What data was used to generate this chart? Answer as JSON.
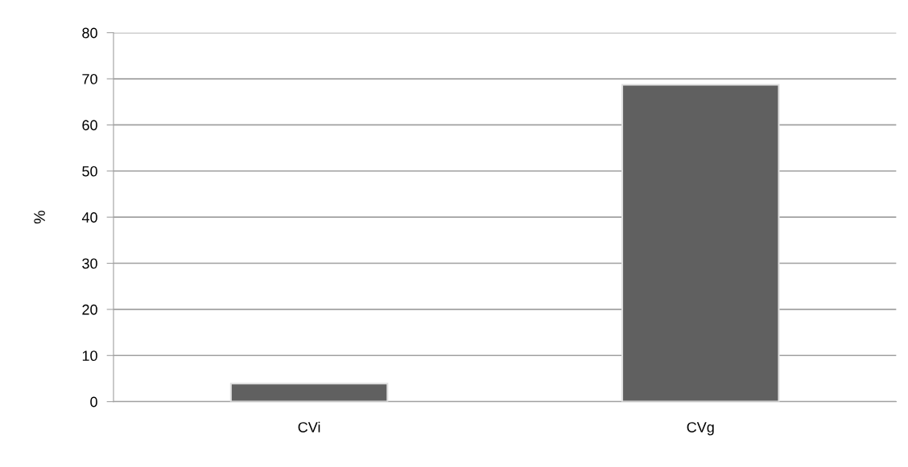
{
  "chart_data": {
    "type": "bar",
    "ylabel": "%",
    "categories": [
      "CVi",
      "CVg"
    ],
    "values": [
      3.9,
      68.7
    ],
    "color": "#606060",
    "ylim": [
      0,
      80
    ],
    "yticks": [
      0,
      10,
      20,
      30,
      40,
      50,
      60,
      70,
      80
    ],
    "grid": "y"
  }
}
